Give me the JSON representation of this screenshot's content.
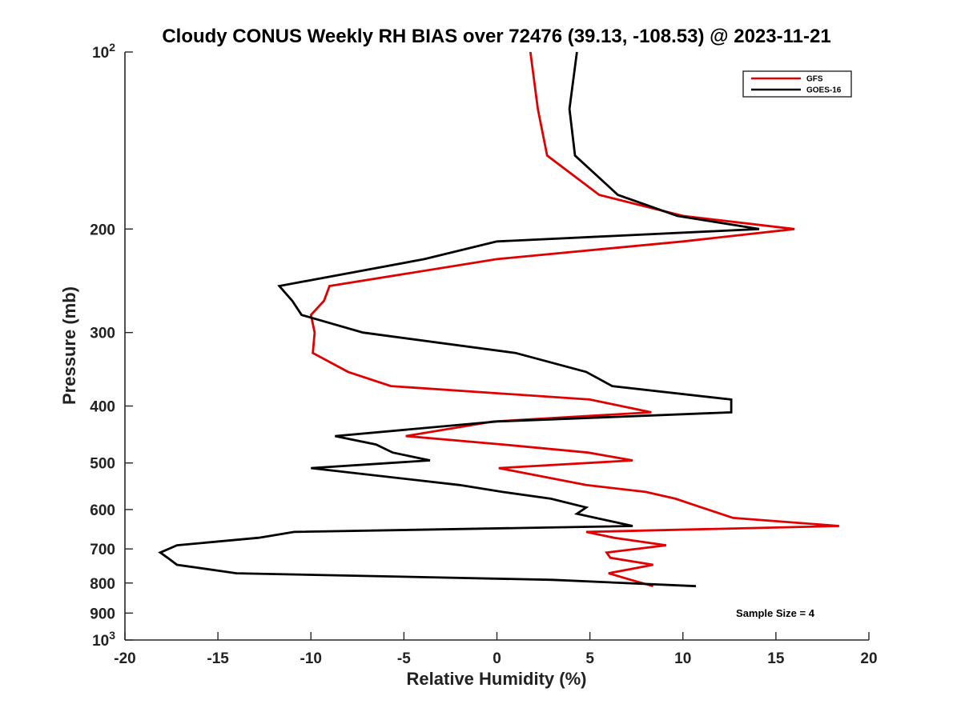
{
  "chart_data": {
    "type": "line",
    "title": "Cloudy CONUS Weekly RH BIAS over 72476 (39.13, -108.53) @ 2023-11-21",
    "xlabel": "Relative Humidity (%)",
    "ylabel": "Pressure (mb)",
    "xlim": [
      -20,
      20
    ],
    "ylim": [
      100,
      1000
    ],
    "y_scale": "log",
    "y_reversed": true,
    "grid": false,
    "legend_position": "top-right",
    "x_ticks": [
      {
        "value": -20,
        "label": "-20"
      },
      {
        "value": -15,
        "label": "-15"
      },
      {
        "value": -10,
        "label": "-10"
      },
      {
        "value": -5,
        "label": "-5"
      },
      {
        "value": 0,
        "label": "0"
      },
      {
        "value": 5,
        "label": "5"
      },
      {
        "value": 10,
        "label": "10"
      },
      {
        "value": 15,
        "label": "15"
      },
      {
        "value": 20,
        "label": "20"
      }
    ],
    "y_ticks": [
      {
        "value": 100,
        "base": "10",
        "exp": "2"
      },
      {
        "value": 200,
        "label": "200"
      },
      {
        "value": 300,
        "label": "300"
      },
      {
        "value": 400,
        "label": "400"
      },
      {
        "value": 500,
        "label": "500"
      },
      {
        "value": 600,
        "label": "600"
      },
      {
        "value": 700,
        "label": "700"
      },
      {
        "value": 800,
        "label": "800"
      },
      {
        "value": 900,
        "label": "900"
      },
      {
        "value": 1000,
        "base": "10",
        "exp": "3"
      }
    ],
    "annotation": "Sample Size = 4",
    "series": [
      {
        "name": "GFS",
        "color": "#e00000",
        "points": [
          [
            1.8,
            100
          ],
          [
            2.2,
            125
          ],
          [
            2.7,
            150
          ],
          [
            5.5,
            175
          ],
          [
            10.0,
            190
          ],
          [
            16.0,
            200
          ],
          [
            10.0,
            210
          ],
          [
            0.0,
            225
          ],
          [
            -9.0,
            250
          ],
          [
            -9.3,
            265
          ],
          [
            -10.0,
            280
          ],
          [
            -9.8,
            300
          ],
          [
            -9.9,
            325
          ],
          [
            -8.0,
            350
          ],
          [
            -5.7,
            370
          ],
          [
            5.0,
            390
          ],
          [
            8.3,
            410
          ],
          [
            -0.2,
            425
          ],
          [
            -4.9,
            450
          ],
          [
            0.3,
            465
          ],
          [
            4.9,
            480
          ],
          [
            7.3,
            495
          ],
          [
            0.1,
            510
          ],
          [
            4.8,
            545
          ],
          [
            8.0,
            560
          ],
          [
            9.6,
            575
          ],
          [
            11.0,
            595
          ],
          [
            12.7,
            620
          ],
          [
            18.4,
            640
          ],
          [
            4.8,
            655
          ],
          [
            6.3,
            670
          ],
          [
            9.1,
            690
          ],
          [
            5.9,
            710
          ],
          [
            6.1,
            725
          ],
          [
            8.4,
            745
          ],
          [
            6.0,
            770
          ],
          [
            7.2,
            790
          ],
          [
            8.4,
            810
          ]
        ]
      },
      {
        "name": "GOES-16",
        "color": "#000000",
        "points": [
          [
            4.3,
            100
          ],
          [
            3.9,
            125
          ],
          [
            4.2,
            150
          ],
          [
            6.5,
            175
          ],
          [
            9.7,
            190
          ],
          [
            14.1,
            200
          ],
          [
            0.0,
            210
          ],
          [
            -3.9,
            225
          ],
          [
            -11.7,
            250
          ],
          [
            -11.0,
            265
          ],
          [
            -10.5,
            280
          ],
          [
            -7.2,
            300
          ],
          [
            1.0,
            325
          ],
          [
            4.8,
            350
          ],
          [
            6.2,
            370
          ],
          [
            12.6,
            390
          ],
          [
            12.6,
            410
          ],
          [
            0.0,
            425
          ],
          [
            -8.7,
            450
          ],
          [
            -6.5,
            465
          ],
          [
            -5.6,
            480
          ],
          [
            -3.6,
            495
          ],
          [
            -10.0,
            510
          ],
          [
            -2.0,
            545
          ],
          [
            0.3,
            560
          ],
          [
            2.9,
            575
          ],
          [
            4.8,
            595
          ],
          [
            4.3,
            610
          ],
          [
            7.3,
            640
          ],
          [
            -10.9,
            655
          ],
          [
            -12.8,
            670
          ],
          [
            -17.2,
            690
          ],
          [
            -18.1,
            710
          ],
          [
            -17.7,
            725
          ],
          [
            -17.2,
            745
          ],
          [
            -14.0,
            770
          ],
          [
            3.0,
            790
          ],
          [
            10.7,
            810
          ]
        ]
      }
    ]
  }
}
